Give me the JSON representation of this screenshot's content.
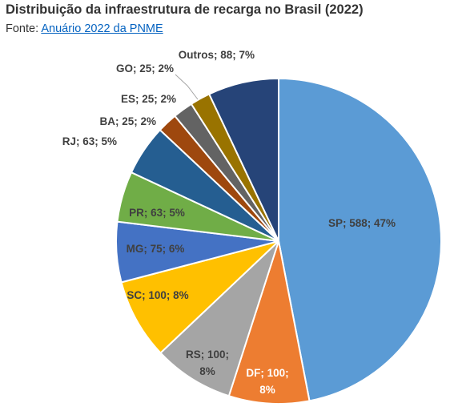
{
  "chart_data": {
    "type": "pie",
    "title": "Distribuição da infraestrutura de recarga no Brasil (2022)",
    "source_prefix": "Fonte:",
    "source_link": "Anuário 2022 da PNME",
    "categories": [
      "SP",
      "DF",
      "RS",
      "SC",
      "MG",
      "PR",
      "RJ",
      "BA",
      "ES",
      "GO",
      "Outros"
    ],
    "values": [
      588,
      100,
      100,
      100,
      75,
      63,
      63,
      25,
      25,
      25,
      88
    ],
    "percent_labels": [
      "47%",
      "8%",
      "8%",
      "8%",
      "6%",
      "5%",
      "5%",
      "2%",
      "2%",
      "2%",
      "7%"
    ],
    "slice_labels": [
      [
        "SP; 588; 47%"
      ],
      [
        "DF; 100;",
        "8%"
      ],
      [
        "RS; 100;",
        "8%"
      ],
      [
        "SC; 100; 8%"
      ],
      [
        "MG; 75; 6%"
      ],
      [
        "PR; 63; 5%"
      ],
      [
        "RJ; 63; 5%"
      ],
      [
        "BA; 25; 2%"
      ],
      [
        "ES; 25; 2%"
      ],
      [
        "GO; 25; 2%"
      ],
      [
        "Outros; 88; 7%"
      ]
    ],
    "colors": [
      "#5b9bd5",
      "#ed7d31",
      "#a5a5a5",
      "#ffc000",
      "#4472c4",
      "#70ad47",
      "#255e91",
      "#9e480e",
      "#636363",
      "#997300",
      "#264478"
    ],
    "label_colors": [
      "#404040",
      "#ffffff",
      "#404040",
      "#404040",
      "#404040",
      "#404040",
      "#404040",
      "#404040",
      "#404040",
      "#404040",
      "#404040"
    ],
    "start_angle_deg": 0,
    "direction": "clockwise"
  }
}
